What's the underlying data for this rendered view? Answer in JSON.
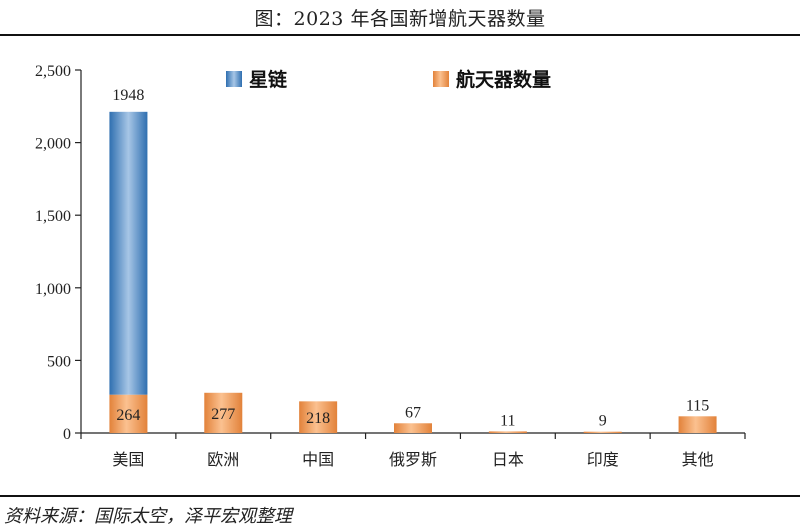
{
  "title": "图：2023 年各国新增航天器数量",
  "source": "资料来源：国际太空，泽平宏观整理",
  "chart_data": {
    "type": "bar",
    "stacked": true,
    "categories": [
      "美国",
      "欧洲",
      "中国",
      "俄罗斯",
      "日本",
      "印度",
      "其他"
    ],
    "series": [
      {
        "name": "航天器数量",
        "color": "#f0a060",
        "values": [
          264,
          277,
          218,
          67,
          11,
          9,
          115
        ]
      },
      {
        "name": "星链",
        "color": "#5b92c9",
        "values": [
          1948,
          0,
          0,
          0,
          0,
          0,
          0
        ]
      }
    ],
    "ylim": [
      0,
      2500
    ],
    "yticks": [
      0,
      500,
      1000,
      1500,
      2000,
      2500
    ],
    "ytick_labels": [
      "0",
      "500",
      "1,000",
      "1,500",
      "2,000",
      "2,500"
    ],
    "legend": [
      "星链",
      "航天器数量"
    ],
    "legend_position": "top",
    "grid": false
  }
}
